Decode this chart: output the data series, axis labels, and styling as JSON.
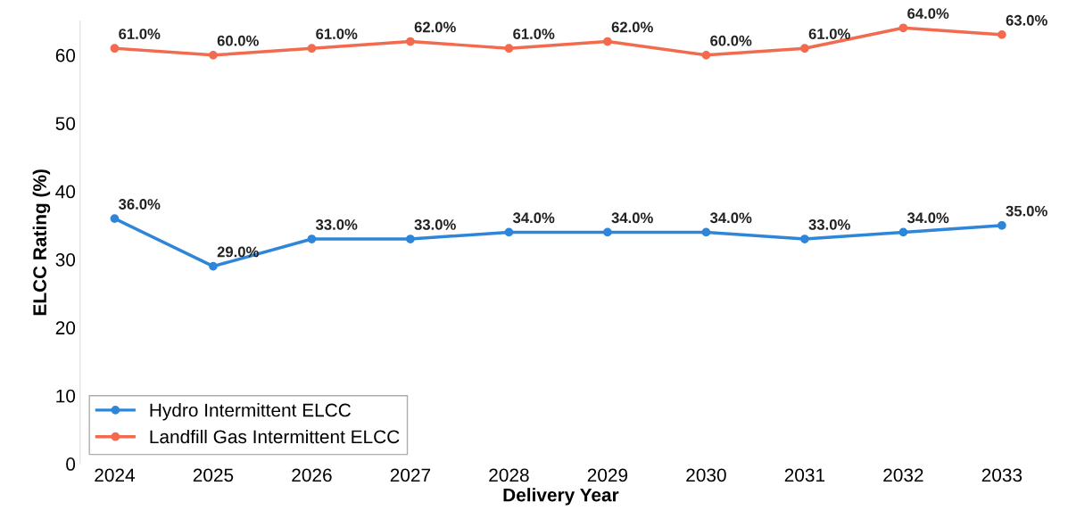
{
  "chart_data": {
    "type": "line",
    "xlabel": "Delivery Year",
    "ylabel": "ELCC Rating (%)",
    "categories": [
      "2024",
      "2025",
      "2026",
      "2027",
      "2028",
      "2029",
      "2030",
      "2031",
      "2032",
      "2033"
    ],
    "series": [
      {
        "name": "Hydro Intermittent ELCC",
        "color": "#2f86d8",
        "values": [
          36.0,
          29.0,
          33.0,
          33.0,
          34.0,
          34.0,
          34.0,
          33.0,
          34.0,
          35.0
        ],
        "value_labels": [
          "36.0%",
          "29.0%",
          "33.0%",
          "33.0%",
          "34.0%",
          "34.0%",
          "34.0%",
          "33.0%",
          "34.0%",
          "35.0%"
        ]
      },
      {
        "name": "Landfill Gas Intermittent ELCC",
        "color": "#f26b4f",
        "values": [
          61.0,
          60.0,
          61.0,
          62.0,
          61.0,
          62.0,
          60.0,
          61.0,
          64.0,
          63.0
        ],
        "value_labels": [
          "61.0%",
          "60.0%",
          "61.0%",
          "62.0%",
          "61.0%",
          "62.0%",
          "60.0%",
          "61.0%",
          "64.0%",
          "63.0%"
        ]
      }
    ],
    "ylim": [
      0,
      65
    ],
    "yticks": [
      0,
      10,
      20,
      30,
      40,
      50,
      60
    ],
    "legend": "bottom left",
    "marker": "circle",
    "line_style": "solid",
    "grid": false
  }
}
